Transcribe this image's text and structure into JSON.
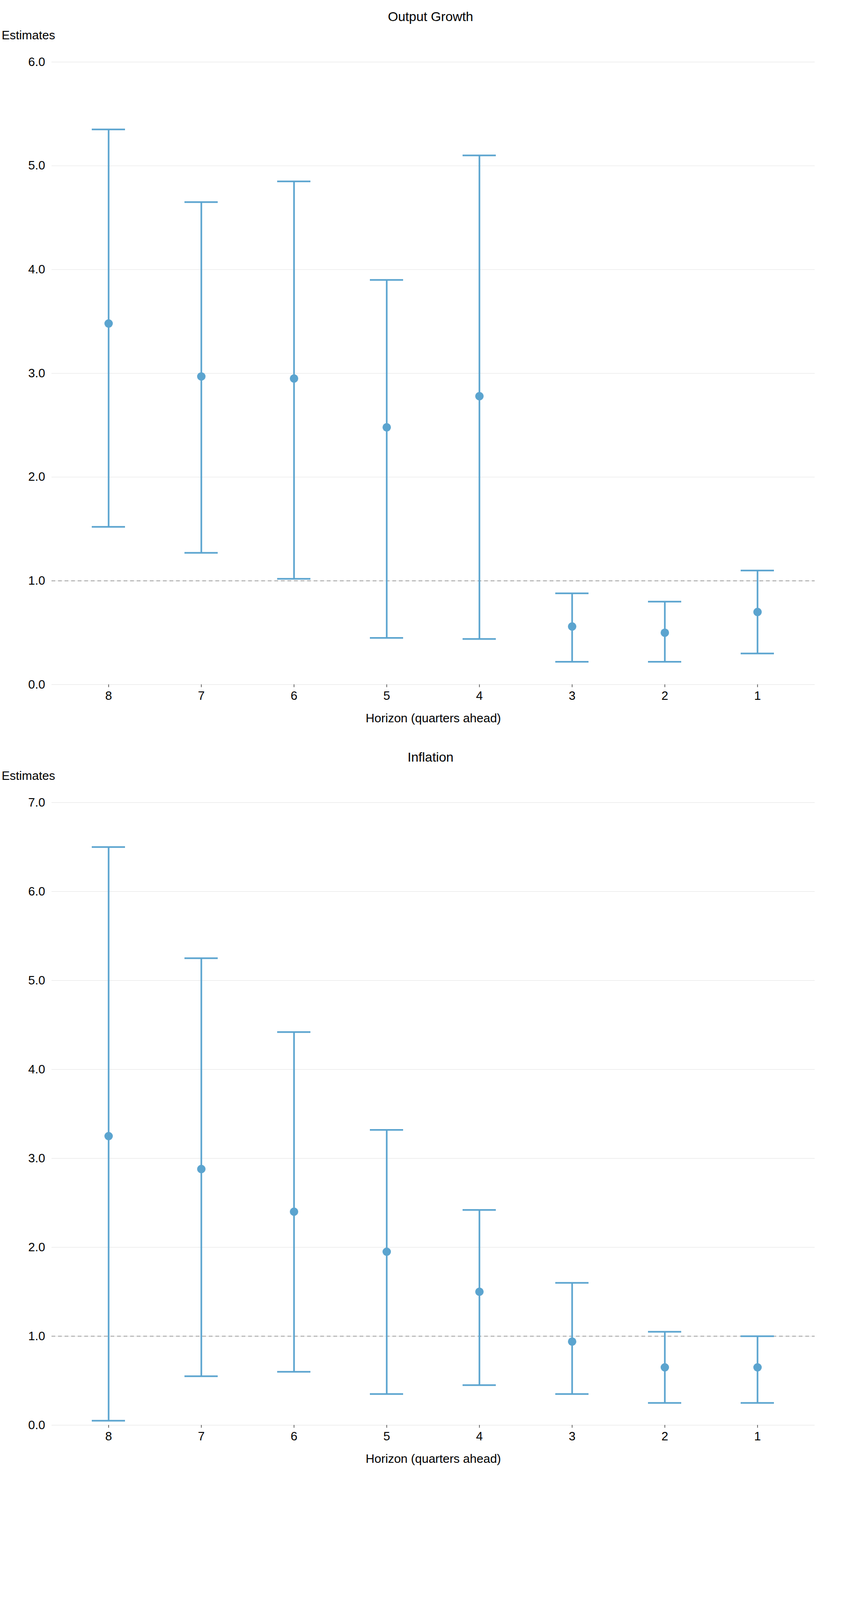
{
  "chart_data": [
    {
      "type": "errorbar",
      "title": "Output Growth",
      "ylabel": "Estimates",
      "xlabel": "Horizon (quarters ahead)",
      "categories": [
        8,
        7,
        6,
        5,
        4,
        3,
        2,
        1
      ],
      "values": [
        3.48,
        2.97,
        2.95,
        2.48,
        2.78,
        0.56,
        0.5,
        0.7
      ],
      "upper": [
        5.35,
        4.65,
        4.85,
        3.9,
        5.1,
        0.88,
        0.8,
        1.1
      ],
      "lower": [
        1.52,
        1.27,
        1.02,
        0.45,
        0.44,
        0.22,
        0.22,
        0.3
      ],
      "color": "#5BA4CF",
      "hline": 1.0,
      "ylim": [
        0,
        6
      ],
      "yticks": [
        0,
        1,
        2,
        3,
        4,
        5,
        6
      ],
      "grid": true
    },
    {
      "type": "errorbar",
      "title": "Inflation",
      "ylabel": "Estimates",
      "xlabel": "Horizon (quarters ahead)",
      "categories": [
        8,
        7,
        6,
        5,
        4,
        3,
        2,
        1
      ],
      "values": [
        3.25,
        2.88,
        2.4,
        1.95,
        1.5,
        0.94,
        0.65,
        0.65
      ],
      "upper": [
        6.5,
        5.25,
        4.42,
        3.32,
        2.42,
        1.6,
        1.05,
        1.0
      ],
      "lower": [
        0.05,
        0.55,
        0.6,
        0.35,
        0.45,
        0.35,
        0.25,
        0.25
      ],
      "color": "#5BA4CF",
      "hline": 1.0,
      "ylim": [
        0,
        7
      ],
      "yticks": [
        0,
        1,
        2,
        3,
        4,
        5,
        6,
        7
      ],
      "grid": true
    }
  ]
}
